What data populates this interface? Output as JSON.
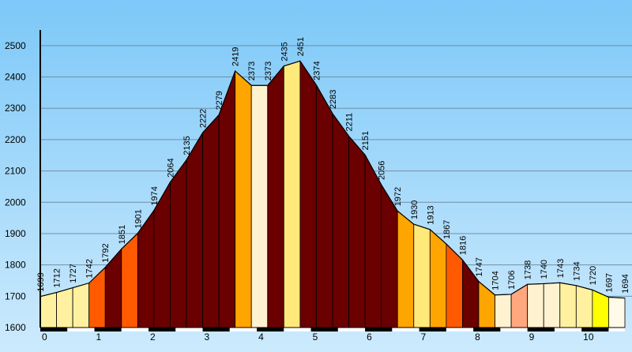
{
  "chart_data": {
    "type": "area",
    "title": "",
    "xlabel": "",
    "ylabel": "",
    "ylim": [
      1600,
      2550
    ],
    "xlim": [
      0,
      10.8
    ],
    "y_ticks": [
      "1600",
      "1700",
      "1800",
      "1900",
      "2000",
      "2100",
      "2200",
      "2300",
      "2400",
      "2500"
    ],
    "x_ticks": [
      "0",
      "1",
      "2",
      "3",
      "4",
      "5",
      "6",
      "7",
      "8",
      "9",
      "10"
    ],
    "grid": "horizontal",
    "background": {
      "top": "#7cc8f8",
      "bottom": "#cdeafd"
    },
    "segment_step_km": 0.3,
    "points": [
      {
        "x": 0.0,
        "y": 1699,
        "label": "1699"
      },
      {
        "x": 0.3,
        "y": 1712,
        "label": "1712"
      },
      {
        "x": 0.6,
        "y": 1727,
        "label": "1727"
      },
      {
        "x": 0.9,
        "y": 1742,
        "label": "1742"
      },
      {
        "x": 1.2,
        "y": 1792,
        "label": "1792"
      },
      {
        "x": 1.5,
        "y": 1851,
        "label": "1851"
      },
      {
        "x": 1.8,
        "y": 1901,
        "label": "1901"
      },
      {
        "x": 2.1,
        "y": 1974,
        "label": "1974"
      },
      {
        "x": 2.4,
        "y": 2064,
        "label": "2064"
      },
      {
        "x": 2.7,
        "y": 2135,
        "label": "2135"
      },
      {
        "x": 3.0,
        "y": 2222,
        "label": "2222"
      },
      {
        "x": 3.3,
        "y": 2279,
        "label": "2279"
      },
      {
        "x": 3.6,
        "y": 2419,
        "label": "2419"
      },
      {
        "x": 3.9,
        "y": 2373,
        "label": "2373"
      },
      {
        "x": 4.2,
        "y": 2373,
        "label": "2373"
      },
      {
        "x": 4.5,
        "y": 2435,
        "label": "2435"
      },
      {
        "x": 4.8,
        "y": 2451,
        "label": "2451"
      },
      {
        "x": 5.1,
        "y": 2374,
        "label": "2374"
      },
      {
        "x": 5.4,
        "y": 2283,
        "label": "2283"
      },
      {
        "x": 5.7,
        "y": 2211,
        "label": "2211"
      },
      {
        "x": 6.0,
        "y": 2151,
        "label": "2151"
      },
      {
        "x": 6.3,
        "y": 2056,
        "label": "2056"
      },
      {
        "x": 6.6,
        "y": 1972,
        "label": "1972"
      },
      {
        "x": 6.9,
        "y": 1930,
        "label": "1930"
      },
      {
        "x": 7.2,
        "y": 1913,
        "label": "1913"
      },
      {
        "x": 7.5,
        "y": 1867,
        "label": "1867"
      },
      {
        "x": 7.8,
        "y": 1816,
        "label": "1816"
      },
      {
        "x": 8.1,
        "y": 1747,
        "label": "1747"
      },
      {
        "x": 8.4,
        "y": 1704,
        "label": "1704"
      },
      {
        "x": 8.7,
        "y": 1706,
        "label": "1706"
      },
      {
        "x": 9.0,
        "y": 1738,
        "label": "1738"
      },
      {
        "x": 9.3,
        "y": 1740,
        "label": "1740"
      },
      {
        "x": 9.6,
        "y": 1743,
        "label": "1743"
      },
      {
        "x": 9.9,
        "y": 1734,
        "label": "1734"
      },
      {
        "x": 10.2,
        "y": 1720,
        "label": "1720"
      },
      {
        "x": 10.5,
        "y": 1697,
        "label": "1697"
      },
      {
        "x": 10.8,
        "y": 1694,
        "label": "1694"
      }
    ],
    "segment_colors": [
      "#fff1a0",
      "#fff1a0",
      "#fff1a0",
      "#ff5a00",
      "#6a0000",
      "#ff5a00",
      "#6a0000",
      "#6a0000",
      "#6a0000",
      "#6a0000",
      "#6a0000",
      "#6a0000",
      "#ffa500",
      "#fff2d0",
      "#6a0000",
      "#ffe97a",
      "#6a0000",
      "#6a0000",
      "#6a0000",
      "#6a0000",
      "#6a0000",
      "#6a0000",
      "#ffa500",
      "#ffe97a",
      "#ffa500",
      "#ff5a00",
      "#6a0000",
      "#ffa500",
      "#fff2d0",
      "#ffa880",
      "#fff2d0",
      "#fff2d0",
      "#fff1a0",
      "#fff1a0",
      "#ffff00",
      "#fffbe8"
    ]
  }
}
